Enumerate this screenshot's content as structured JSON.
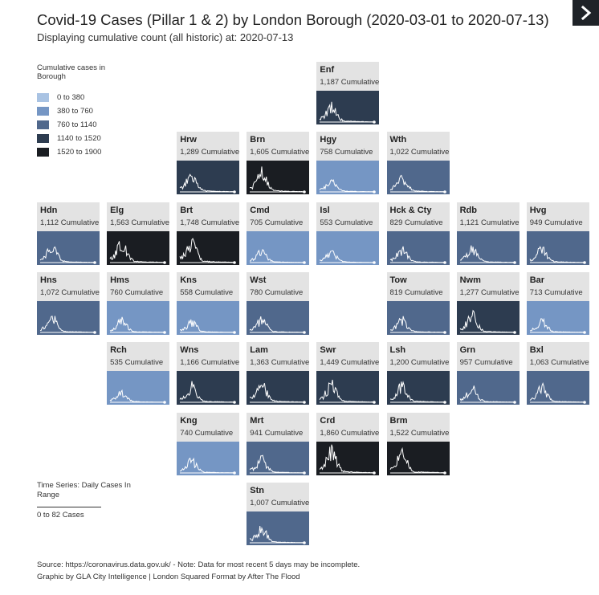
{
  "header": {
    "title": "Covid-19 Cases (Pillar 1 & 2) by London Borough (2020-03-01 to 2020-07-13)",
    "subtitle": "Displaying cumulative count (all historic) at: 2020-07-13"
  },
  "legend": {
    "title": "Cumulative cases in Borough",
    "items": [
      {
        "label": "0 to 380",
        "color": "#a9c3e3"
      },
      {
        "label": "380 to 760",
        "color": "#7596c4"
      },
      {
        "label": "760 to 1140",
        "color": "#50688c"
      },
      {
        "label": "1140 to 1520",
        "color": "#2d3c50"
      },
      {
        "label": "1520 to 1900",
        "color": "#1a1d22"
      }
    ]
  },
  "time_series_legend": {
    "title": "Time Series: Daily Cases In Range",
    "range": "0 to 82 Cases"
  },
  "footer": {
    "source": "Source: https://coronavirus.data.gov.uk/ - Note: Data for most recent 5 days may be incomplete.",
    "credit": "Graphic by GLA City Intelligence | London Squared Format by After The Flood"
  },
  "chart_data": {
    "type": "tile-grid-map",
    "title": "Covid-19 Cases (Pillar 1 & 2) by London Borough (2020-03-01 to 2020-07-13)",
    "date_range": [
      "2020-03-01",
      "2020-07-13"
    ],
    "sparkline_range": [
      0,
      82
    ],
    "color_bins": [
      [
        0,
        380
      ],
      [
        380,
        760
      ],
      [
        760,
        1140
      ],
      [
        1140,
        1520
      ],
      [
        1520,
        1900
      ]
    ],
    "tiles": [
      {
        "code": "Enf",
        "count_label": "1,187 Cumulative",
        "value": 1187,
        "row": 0,
        "col": 4
      },
      {
        "code": "Hrw",
        "count_label": "1,289 Cumulative",
        "value": 1289,
        "row": 1,
        "col": 2
      },
      {
        "code": "Brn",
        "count_label": "1,605 Cumulative",
        "value": 1605,
        "row": 1,
        "col": 3
      },
      {
        "code": "Hgy",
        "count_label": "758 Cumulative",
        "value": 758,
        "row": 1,
        "col": 4
      },
      {
        "code": "Wth",
        "count_label": "1,022 Cumulative",
        "value": 1022,
        "row": 1,
        "col": 5
      },
      {
        "code": "Hdn",
        "count_label": "1,112 Cumulative",
        "value": 1112,
        "row": 2,
        "col": 0
      },
      {
        "code": "Elg",
        "count_label": "1,563 Cumulative",
        "value": 1563,
        "row": 2,
        "col": 1
      },
      {
        "code": "Brt",
        "count_label": "1,748 Cumulative",
        "value": 1748,
        "row": 2,
        "col": 2
      },
      {
        "code": "Cmd",
        "count_label": "705 Cumulative",
        "value": 705,
        "row": 2,
        "col": 3
      },
      {
        "code": "Isl",
        "count_label": "553 Cumulative",
        "value": 553,
        "row": 2,
        "col": 4
      },
      {
        "code": "Hck & Cty",
        "count_label": "829 Cumulative",
        "value": 829,
        "row": 2,
        "col": 5
      },
      {
        "code": "Rdb",
        "count_label": "1,121 Cumulative",
        "value": 1121,
        "row": 2,
        "col": 6
      },
      {
        "code": "Hvg",
        "count_label": "949 Cumulative",
        "value": 949,
        "row": 2,
        "col": 7
      },
      {
        "code": "Hns",
        "count_label": "1,072 Cumulative",
        "value": 1072,
        "row": 3,
        "col": 0
      },
      {
        "code": "Hms",
        "count_label": "760 Cumulative",
        "value": 760,
        "row": 3,
        "col": 1
      },
      {
        "code": "Kns",
        "count_label": "558 Cumulative",
        "value": 558,
        "row": 3,
        "col": 2
      },
      {
        "code": "Wst",
        "count_label": "780 Cumulative",
        "value": 780,
        "row": 3,
        "col": 3
      },
      {
        "code": "Tow",
        "count_label": "819 Cumulative",
        "value": 819,
        "row": 3,
        "col": 5
      },
      {
        "code": "Nwm",
        "count_label": "1,277 Cumulative",
        "value": 1277,
        "row": 3,
        "col": 6
      },
      {
        "code": "Bar",
        "count_label": "713 Cumulative",
        "value": 713,
        "row": 3,
        "col": 7
      },
      {
        "code": "Rch",
        "count_label": "535 Cumulative",
        "value": 535,
        "row": 4,
        "col": 1
      },
      {
        "code": "Wns",
        "count_label": "1,166 Cumulative",
        "value": 1166,
        "row": 4,
        "col": 2
      },
      {
        "code": "Lam",
        "count_label": "1,363 Cumulative",
        "value": 1363,
        "row": 4,
        "col": 3
      },
      {
        "code": "Swr",
        "count_label": "1,449 Cumulative",
        "value": 1449,
        "row": 4,
        "col": 4
      },
      {
        "code": "Lsh",
        "count_label": "1,200 Cumulative",
        "value": 1200,
        "row": 4,
        "col": 5
      },
      {
        "code": "Grn",
        "count_label": "957 Cumulative",
        "value": 957,
        "row": 4,
        "col": 6
      },
      {
        "code": "Bxl",
        "count_label": "1,063 Cumulative",
        "value": 1063,
        "row": 4,
        "col": 7
      },
      {
        "code": "Kng",
        "count_label": "740 Cumulative",
        "value": 740,
        "row": 5,
        "col": 2
      },
      {
        "code": "Mrt",
        "count_label": "941 Cumulative",
        "value": 941,
        "row": 5,
        "col": 3
      },
      {
        "code": "Crd",
        "count_label": "1,860 Cumulative",
        "value": 1860,
        "row": 5,
        "col": 4
      },
      {
        "code": "Brm",
        "count_label": "1,522 Cumulative",
        "value": 1522,
        "row": 5,
        "col": 5
      },
      {
        "code": "Stn",
        "count_label": "1,007 Cumulative",
        "value": 1007,
        "row": 6,
        "col": 3
      }
    ]
  }
}
